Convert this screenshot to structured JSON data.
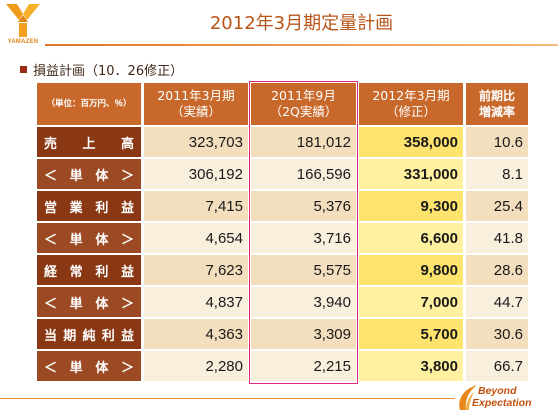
{
  "brand": {
    "logo_text": "YAMAZEN",
    "logo_icon": "yamazen-y-logo-icon"
  },
  "title": "2012年3月期定量計画",
  "section": {
    "title": "損益計画（10．26修正）",
    "bullet_icon": "square-bullet-icon"
  },
  "table": {
    "unit_label": "（単位：百万円、％）",
    "columns": [
      {
        "line1": "2011年3月期",
        "line2": "（実績）"
      },
      {
        "line1": "2011年9月",
        "line2": "（2Q実績）"
      },
      {
        "line1": "2012年3月期",
        "line2": "（修正）"
      },
      {
        "line1": "前期比",
        "line2": "増減率"
      }
    ],
    "rows": [
      {
        "label": "売上高",
        "values": [
          "323,703",
          "181,012",
          "358,000",
          "10.6"
        ]
      },
      {
        "label": "＜単体＞",
        "values": [
          "306,192",
          "166,596",
          "331,000",
          "8.1"
        ]
      },
      {
        "label": "営業利益",
        "values": [
          "7,415",
          "5,376",
          "9,300",
          "25.4"
        ]
      },
      {
        "label": "＜単体＞",
        "values": [
          "4,654",
          "3,716",
          "6,600",
          "41.8"
        ]
      },
      {
        "label": "経常利益",
        "values": [
          "7,623",
          "5,575",
          "9,800",
          "28.6"
        ]
      },
      {
        "label": "＜単体＞",
        "values": [
          "4,837",
          "3,940",
          "7,000",
          "44.7"
        ]
      },
      {
        "label": "当期純利益",
        "values": [
          "4,363",
          "3,309",
          "5,700",
          "30.6"
        ]
      },
      {
        "label": "＜単体＞",
        "values": [
          "2,280",
          "2,215",
          "3,800",
          "66.7"
        ]
      }
    ]
  },
  "footer": {
    "brand_line1": "Beyond",
    "brand_line2": "Expectation",
    "brand_icon": "swoosh-icon"
  },
  "colors": {
    "accent": "#b85418",
    "header": "#c8692b",
    "label_main": "#8a3813",
    "label_sub": "#9c4a24",
    "cell_main": "#f3dfbd",
    "cell_sub": "#f9efdd",
    "highlight_main": "#fee46e",
    "highlight_sub": "#fff1a0",
    "focus_frame": "#d82a7e"
  }
}
